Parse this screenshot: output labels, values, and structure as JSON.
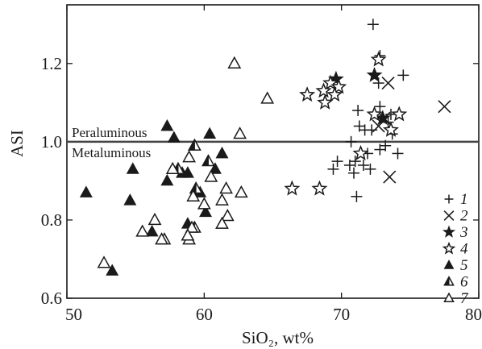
{
  "chart_data": {
    "type": "scatter",
    "xlabel": "SiO₂, wt%",
    "ylabel": "ASI",
    "xlim": [
      50,
      80
    ],
    "ylim": [
      0.6,
      1.35
    ],
    "xticks": [
      50,
      60,
      70,
      80
    ],
    "xtick_labels": [
      "50",
      "60",
      "70",
      "80"
    ],
    "yticks": [
      0.6,
      0.8,
      1.0,
      1.2
    ],
    "ytick_labels": [
      "0.6",
      "0.8",
      "1.0",
      "1.2"
    ],
    "reference_line": {
      "y": 1.0,
      "label_above": "Peraluminous",
      "label_below": "Metaluminous"
    },
    "legend_position": "bottom-right",
    "series": [
      {
        "name": "1",
        "marker": "plus",
        "points": [
          [
            72.3,
            1.3
          ],
          [
            72.8,
            1.22
          ],
          [
            74.5,
            1.17
          ],
          [
            72.7,
            1.15
          ],
          [
            71.2,
            1.08
          ],
          [
            72.8,
            1.09
          ],
          [
            73.6,
            1.07
          ],
          [
            71.3,
            1.04
          ],
          [
            71.7,
            1.03
          ],
          [
            72.2,
            1.03
          ],
          [
            73.4,
            1.05
          ],
          [
            73.7,
            1.02
          ],
          [
            70.7,
            1.0
          ],
          [
            73.2,
            0.99
          ],
          [
            74.1,
            0.97
          ],
          [
            72.8,
            0.98
          ],
          [
            71.0,
            0.95
          ],
          [
            71.9,
            0.97
          ],
          [
            71.6,
            0.94
          ],
          [
            70.6,
            0.94
          ],
          [
            69.7,
            0.95
          ],
          [
            72.1,
            0.93
          ],
          [
            70.9,
            0.92
          ],
          [
            69.4,
            0.93
          ],
          [
            71.1,
            0.86
          ]
        ]
      },
      {
        "name": "2",
        "marker": "x",
        "points": [
          [
            77.5,
            1.09
          ],
          [
            73.4,
            1.15
          ],
          [
            73.1,
            1.06
          ],
          [
            72.7,
            1.04
          ],
          [
            73.5,
            0.91
          ]
        ]
      },
      {
        "name": "3",
        "marker": "star-filled",
        "points": [
          [
            69.6,
            1.16
          ],
          [
            72.4,
            1.17
          ],
          [
            73.0,
            1.06
          ]
        ]
      },
      {
        "name": "4",
        "marker": "star-open",
        "points": [
          [
            72.7,
            1.21
          ],
          [
            69.2,
            1.15
          ],
          [
            68.7,
            1.13
          ],
          [
            69.8,
            1.14
          ],
          [
            67.5,
            1.12
          ],
          [
            68.8,
            1.1
          ],
          [
            69.5,
            1.12
          ],
          [
            72.4,
            1.07
          ],
          [
            74.2,
            1.07
          ],
          [
            73.6,
            1.03
          ],
          [
            71.4,
            0.97
          ],
          [
            66.4,
            0.88
          ],
          [
            68.4,
            0.88
          ]
        ]
      },
      {
        "name": "5",
        "marker": "triangle-filled",
        "points": [
          [
            57.3,
            1.04
          ],
          [
            60.4,
            1.02
          ],
          [
            57.8,
            1.01
          ],
          [
            61.3,
            0.97
          ],
          [
            54.8,
            0.93
          ],
          [
            58.4,
            0.92
          ],
          [
            58.8,
            0.92
          ],
          [
            60.8,
            0.93
          ],
          [
            57.3,
            0.9
          ],
          [
            59.7,
            0.87
          ],
          [
            51.4,
            0.87
          ],
          [
            54.6,
            0.85
          ],
          [
            60.1,
            0.82
          ],
          [
            58.8,
            0.79
          ],
          [
            56.2,
            0.77
          ],
          [
            53.3,
            0.67
          ]
        ]
      },
      {
        "name": "6",
        "marker": "triangle-half",
        "points": [
          [
            59.3,
            0.99
          ],
          [
            60.3,
            0.95
          ],
          [
            58.1,
            0.93
          ],
          [
            59.4,
            0.88
          ],
          [
            59.3,
            0.78
          ]
        ]
      },
      {
        "name": "7",
        "marker": "triangle-open",
        "points": [
          [
            62.2,
            1.2
          ],
          [
            64.6,
            1.11
          ],
          [
            62.6,
            1.02
          ],
          [
            58.9,
            0.96
          ],
          [
            57.7,
            0.93
          ],
          [
            60.5,
            0.91
          ],
          [
            61.6,
            0.88
          ],
          [
            62.7,
            0.87
          ],
          [
            59.2,
            0.86
          ],
          [
            61.3,
            0.85
          ],
          [
            60.0,
            0.84
          ],
          [
            61.7,
            0.81
          ],
          [
            56.4,
            0.8
          ],
          [
            61.3,
            0.79
          ],
          [
            59.1,
            0.78
          ],
          [
            55.5,
            0.77
          ],
          [
            57.1,
            0.75
          ],
          [
            56.9,
            0.75
          ],
          [
            58.9,
            0.75
          ],
          [
            58.8,
            0.76
          ],
          [
            52.7,
            0.69
          ]
        ]
      }
    ]
  }
}
